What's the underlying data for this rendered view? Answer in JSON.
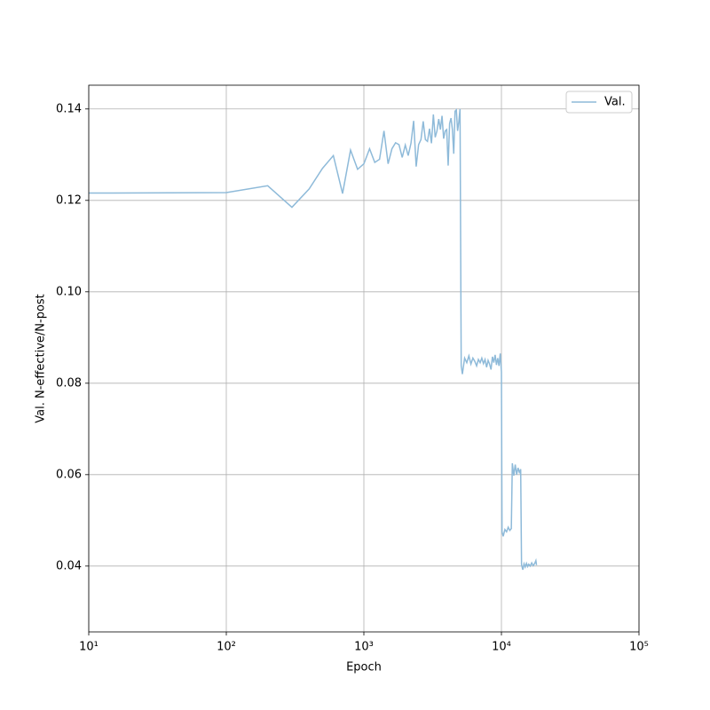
{
  "chart_data": {
    "type": "line",
    "xlabel": "Epoch",
    "ylabel": "Val. N-effective/N-post",
    "xscale": "log",
    "grid": true,
    "legend": "upper right",
    "xlim": [
      10,
      100000
    ],
    "xticks": [
      {
        "value": 10,
        "label": "10¹"
      },
      {
        "value": 100,
        "label": "10²"
      },
      {
        "value": 1000,
        "label": "10³"
      },
      {
        "value": 10000,
        "label": "10⁴"
      },
      {
        "value": 100000,
        "label": "10⁵"
      }
    ],
    "ylim": [
      0.0256,
      0.1452
    ],
    "yticks": [
      0.04,
      0.06,
      0.08,
      {
        "value": 0.1,
        "label": "0.10"
      },
      0.12,
      0.14
    ],
    "x": [
      10,
      100,
      200,
      300,
      400,
      500,
      600,
      700,
      800,
      900,
      1000,
      1100,
      1200,
      1300,
      1400,
      1500,
      1600,
      1700,
      1800,
      1900,
      2000,
      2100,
      2200,
      2300,
      2400,
      2500,
      2600,
      2700,
      2800,
      2900,
      3000,
      3100,
      3200,
      3300,
      3400,
      3500,
      3600,
      3700,
      3800,
      3900,
      4000,
      4100,
      4200,
      4300,
      4400,
      4500,
      4600,
      4700,
      4800,
      4900,
      5000,
      5100,
      5200,
      5400,
      5600,
      5800,
      6000,
      6200,
      6400,
      6600,
      6800,
      7000,
      7200,
      7400,
      7600,
      7800,
      8000,
      8200,
      8400,
      8600,
      8800,
      9000,
      9200,
      9400,
      9600,
      9800,
      10000,
      10100,
      10300,
      10600,
      10900,
      11200,
      11500,
      11800,
      12000,
      12300,
      12600,
      12900,
      13200,
      13500,
      13800,
      14000,
      14300,
      14600,
      14900,
      15200,
      15500,
      15800,
      16200,
      16600,
      17000,
      17400,
      17800,
      18000
    ],
    "series": [
      {
        "name": "Val.",
        "color": "#8ebad9",
        "values": [
          0.1216,
          0.1217,
          0.1232,
          0.1185,
          0.1225,
          0.127,
          0.1298,
          0.1215,
          0.131,
          0.1268,
          0.128,
          0.1313,
          0.1283,
          0.129,
          0.1352,
          0.128,
          0.1313,
          0.1326,
          0.1322,
          0.1294,
          0.1321,
          0.1298,
          0.1325,
          0.1374,
          0.1274,
          0.1322,
          0.1333,
          0.1373,
          0.1333,
          0.1329,
          0.1357,
          0.1325,
          0.1388,
          0.1338,
          0.1352,
          0.1378,
          0.1355,
          0.1385,
          0.1335,
          0.1352,
          0.1355,
          0.1276,
          0.1368,
          0.138,
          0.1355,
          0.1302,
          0.1395,
          0.1398,
          0.1352,
          0.1372,
          0.14,
          0.0838,
          0.082,
          0.0855,
          0.0845,
          0.086,
          0.0842,
          0.0855,
          0.0848,
          0.0838,
          0.0852,
          0.0845,
          0.0855,
          0.0843,
          0.0852,
          0.0835,
          0.085,
          0.0842,
          0.083,
          0.0858,
          0.0845,
          0.0862,
          0.084,
          0.0855,
          0.0838,
          0.0865,
          0.0825,
          0.0475,
          0.0465,
          0.048,
          0.0475,
          0.0485,
          0.0478,
          0.0482,
          0.0625,
          0.0598,
          0.0622,
          0.06,
          0.0615,
          0.0605,
          0.0612,
          0.0403,
          0.0392,
          0.0405,
          0.0398,
          0.0406,
          0.0399,
          0.0404,
          0.04,
          0.0407,
          0.0401,
          0.0405,
          0.0412,
          0.0402
        ]
      }
    ]
  }
}
